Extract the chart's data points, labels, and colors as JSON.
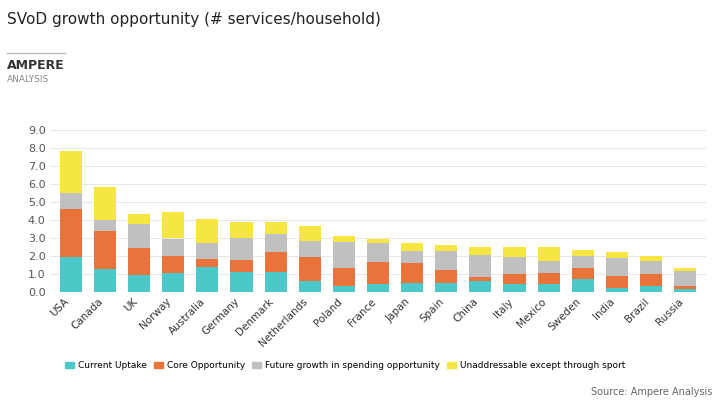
{
  "title": "SVoD growth opportunity (# services/household)",
  "logo_text": [
    "AMPERE",
    "ANALYSIS"
  ],
  "source": "Source: Ampere Analysis",
  "categories": [
    "USA",
    "Canada",
    "UK",
    "Norway",
    "Australia",
    "Germany",
    "Denmark",
    "Netherlands",
    "Poland",
    "France",
    "Japan",
    "Spain",
    "China",
    "Italy",
    "Mexico",
    "Sweden",
    "India",
    "Brazil",
    "Russia"
  ],
  "current_uptake": [
    1.9,
    1.25,
    0.95,
    1.05,
    1.35,
    1.1,
    1.1,
    0.6,
    0.3,
    0.45,
    0.5,
    0.5,
    0.6,
    0.4,
    0.4,
    0.7,
    0.2,
    0.3,
    0.15
  ],
  "core_opportunity": [
    2.7,
    2.1,
    1.45,
    0.95,
    0.45,
    0.65,
    1.1,
    1.3,
    1.0,
    1.2,
    1.1,
    0.7,
    0.2,
    0.6,
    0.65,
    0.6,
    0.65,
    0.7,
    0.15
  ],
  "future_growth": [
    0.9,
    0.65,
    1.35,
    0.95,
    0.9,
    1.25,
    1.0,
    0.9,
    1.45,
    1.05,
    0.65,
    1.05,
    1.25,
    0.9,
    0.65,
    0.7,
    1.0,
    0.7,
    0.85
  ],
  "unaddressable": [
    2.3,
    1.8,
    0.55,
    1.45,
    1.35,
    0.85,
    0.65,
    0.85,
    0.35,
    0.2,
    0.45,
    0.35,
    0.45,
    0.6,
    0.8,
    0.3,
    0.35,
    0.3,
    0.15
  ],
  "colors": {
    "current_uptake": "#4DC8C8",
    "core_opportunity": "#E8743B",
    "future_growth": "#C0C0C0",
    "unaddressable": "#F5E642"
  },
  "legend_labels": [
    "Current Uptake",
    "Core Opportunity",
    "Future growth in spending opportunity",
    "Unaddressable except through sport"
  ],
  "ylim": [
    0,
    9.0
  ],
  "yticks": [
    0.0,
    1.0,
    2.0,
    3.0,
    4.0,
    5.0,
    6.0,
    7.0,
    8.0,
    9.0
  ],
  "background_color": "#FFFFFF"
}
